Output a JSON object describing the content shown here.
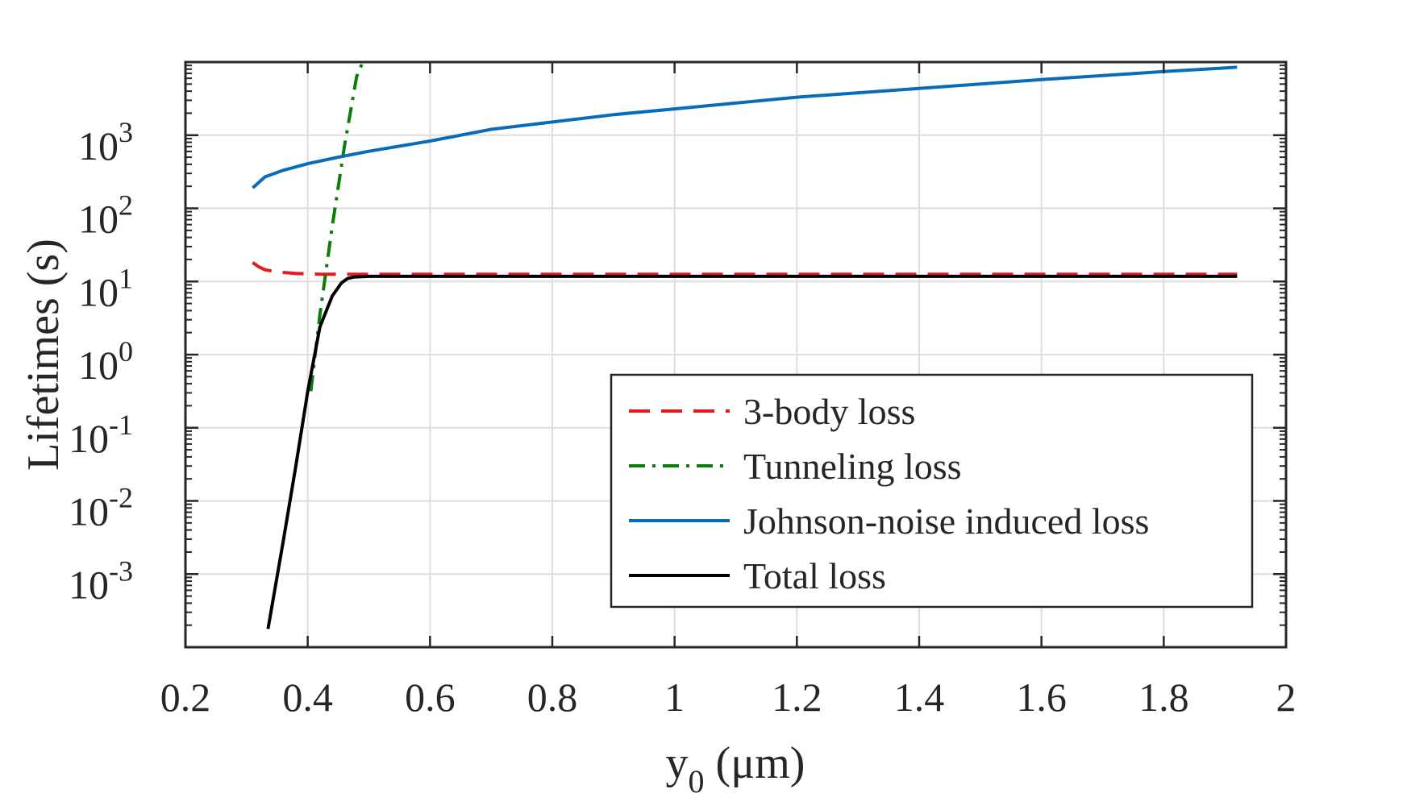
{
  "chart_data": {
    "type": "line",
    "title": "",
    "xlabel": {
      "main": "y",
      "subscript": "0",
      "unit": " (μm)"
    },
    "ylabel": "Lifetimes (s)",
    "xlim": [
      0.2,
      2
    ],
    "ylim_log10": [
      -4,
      4
    ],
    "y_scale": "log",
    "grid": true,
    "legend_position": "bottom-right",
    "x_ticks": [
      {
        "value": 0.2,
        "label": "0.2"
      },
      {
        "value": 0.4,
        "label": "0.4"
      },
      {
        "value": 0.6,
        "label": "0.6"
      },
      {
        "value": 0.8,
        "label": "0.8"
      },
      {
        "value": 1.0,
        "label": "1"
      },
      {
        "value": 1.2,
        "label": "1.2"
      },
      {
        "value": 1.4,
        "label": "1.4"
      },
      {
        "value": 1.6,
        "label": "1.6"
      },
      {
        "value": 1.8,
        "label": "1.8"
      },
      {
        "value": 2.0,
        "label": "2"
      }
    ],
    "y_ticks": [
      {
        "exp": -3,
        "base": "10",
        "sup": "-3"
      },
      {
        "exp": -2,
        "base": "10",
        "sup": "-2"
      },
      {
        "exp": -1,
        "base": "10",
        "sup": "-1"
      },
      {
        "exp": 0,
        "base": "10",
        "sup": "0"
      },
      {
        "exp": 1,
        "base": "10",
        "sup": "1"
      },
      {
        "exp": 2,
        "base": "10",
        "sup": "2"
      },
      {
        "exp": 3,
        "base": "10",
        "sup": "3"
      }
    ],
    "series": [
      {
        "name": "3-body loss",
        "color": "#e8191c",
        "style": "dashed",
        "x": [
          0.31,
          0.32,
          0.33,
          0.35,
          0.38,
          0.42,
          0.5,
          0.7,
          1.0,
          1.5,
          1.92
        ],
        "log10_y": [
          1.26,
          1.2,
          1.16,
          1.13,
          1.11,
          1.1,
          1.1,
          1.1,
          1.1,
          1.1,
          1.1
        ]
      },
      {
        "name": "Tunneling loss",
        "color": "#0a7d0a",
        "style": "dashdot",
        "x": [
          0.405,
          0.42,
          0.44,
          0.46,
          0.48,
          0.49
        ],
        "log10_y": [
          -0.5,
          0.55,
          1.75,
          2.85,
          3.8,
          4.0
        ]
      },
      {
        "name": "Johnson-noise induced loss",
        "color": "#0a6cb8",
        "style": "solid",
        "x": [
          0.31,
          0.33,
          0.36,
          0.4,
          0.45,
          0.5,
          0.6,
          0.7,
          0.8,
          0.9,
          1.0,
          1.2,
          1.4,
          1.6,
          1.8,
          1.92
        ],
        "log10_y": [
          2.28,
          2.43,
          2.52,
          2.61,
          2.7,
          2.78,
          2.92,
          3.08,
          3.18,
          3.28,
          3.36,
          3.52,
          3.64,
          3.76,
          3.87,
          3.93
        ]
      },
      {
        "name": "Total loss",
        "color": "#000000",
        "style": "solid",
        "x": [
          0.335,
          0.36,
          0.38,
          0.4,
          0.42,
          0.44,
          0.455,
          0.465,
          0.475,
          0.5,
          0.7,
          1.0,
          1.5,
          1.92
        ],
        "log10_y": [
          -3.75,
          -2.55,
          -1.55,
          -0.5,
          0.38,
          0.8,
          0.98,
          1.04,
          1.06,
          1.07,
          1.07,
          1.07,
          1.07,
          1.07
        ]
      }
    ]
  }
}
